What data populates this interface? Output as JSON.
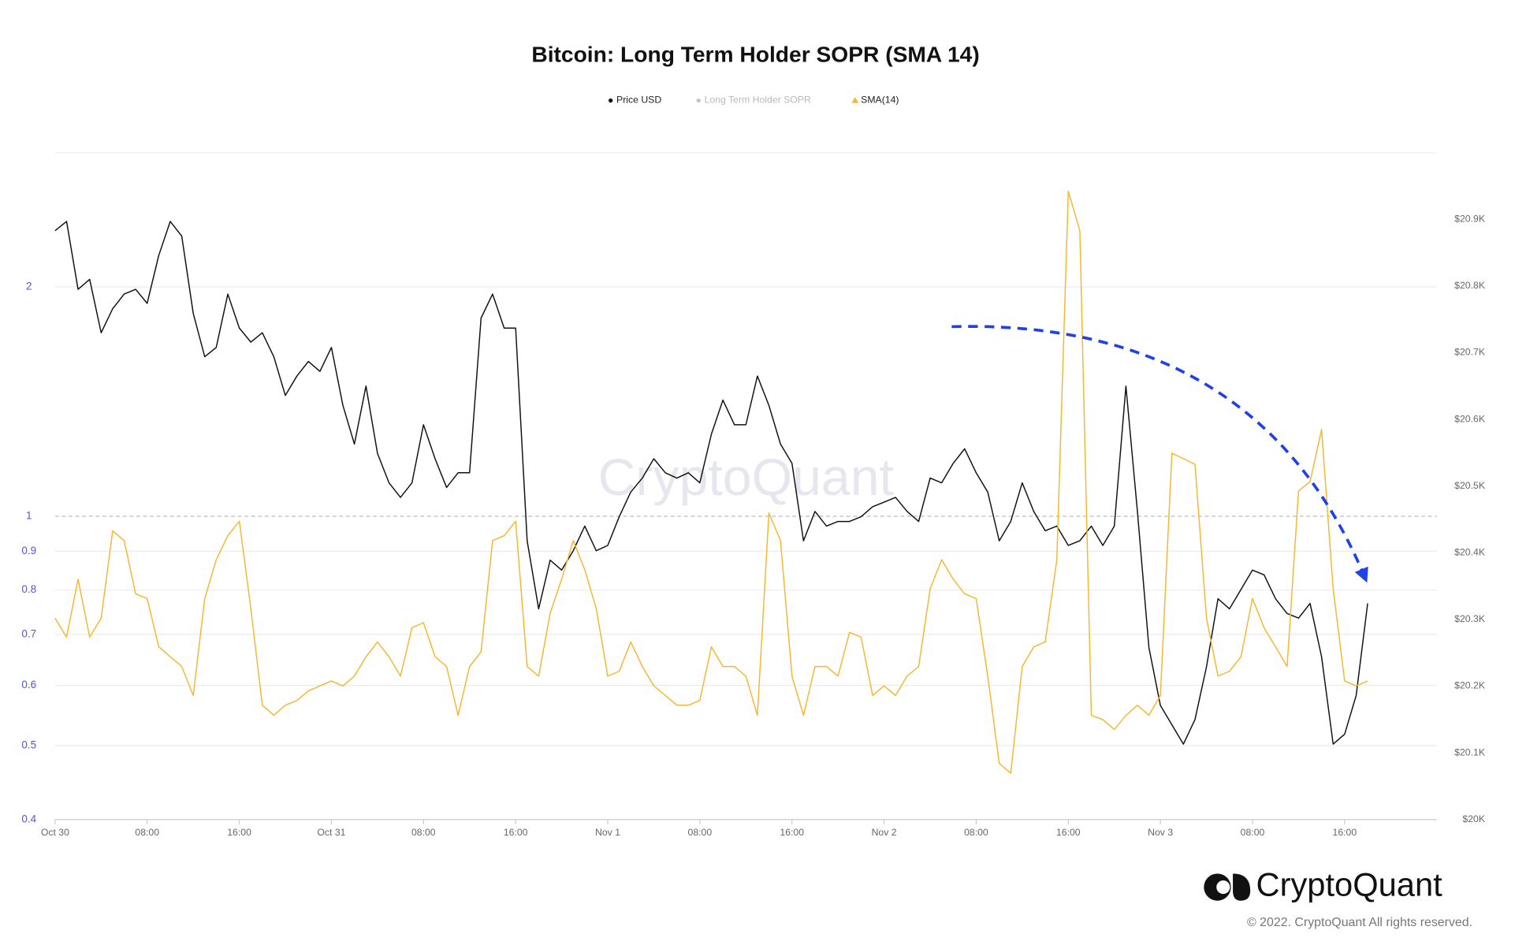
{
  "chart_data": {
    "type": "line",
    "title": "Bitcoin: Long Term Holder SOPR (SMA 14)",
    "watermark": "CryptoQuant",
    "brand": "CryptoQuant",
    "copyright": "© 2022. CryptoQuant All rights reserved.",
    "x": [
      0,
      1,
      2,
      3,
      4,
      5,
      6,
      7,
      8,
      9,
      10,
      11,
      12,
      13,
      14,
      15,
      16,
      17,
      18,
      19,
      20,
      21,
      22,
      23,
      24,
      25,
      26,
      27,
      28,
      29,
      30,
      31,
      32,
      33,
      34,
      35,
      36,
      37,
      38,
      39,
      40,
      41,
      42,
      43,
      44,
      45,
      46,
      47,
      48,
      49,
      50,
      51,
      52,
      53,
      54,
      55,
      56,
      57,
      58,
      59,
      60,
      61,
      62,
      63,
      64,
      65,
      66,
      67,
      68,
      69,
      70,
      71,
      72,
      73,
      74,
      75,
      76,
      77,
      78,
      79,
      80,
      81,
      82,
      83,
      84,
      85,
      86,
      87,
      88,
      89,
      90,
      91,
      92,
      93,
      94,
      95,
      96,
      97,
      98,
      99,
      100,
      101,
      102,
      103,
      104,
      105,
      106,
      107,
      108,
      109,
      110,
      111,
      112,
      113,
      114
    ],
    "xlim": [
      0,
      120
    ],
    "xticks": [
      {
        "value": 0,
        "label": "Oct 30"
      },
      {
        "value": 8,
        "label": "08:00"
      },
      {
        "value": 16,
        "label": "16:00"
      },
      {
        "value": 24,
        "label": "Oct 31"
      },
      {
        "value": 32,
        "label": "08:00"
      },
      {
        "value": 40,
        "label": "16:00"
      },
      {
        "value": 48,
        "label": "Nov 1"
      },
      {
        "value": 56,
        "label": "08:00"
      },
      {
        "value": 64,
        "label": "16:00"
      },
      {
        "value": 72,
        "label": "Nov 2"
      },
      {
        "value": 80,
        "label": "08:00"
      },
      {
        "value": 88,
        "label": "16:00"
      },
      {
        "value": 96,
        "label": "Nov 3"
      },
      {
        "value": 104,
        "label": "08:00"
      },
      {
        "value": 112,
        "label": "16:00"
      }
    ],
    "ylim": [
      0.4,
      3
    ],
    "yscale": "log",
    "yticks": [
      0.4,
      0.5,
      0.6,
      0.7,
      0.8,
      0.9,
      1,
      2
    ],
    "reference_line": 1,
    "y2lim": [
      20000,
      21000
    ],
    "y2ticks": [
      {
        "value": 20000,
        "label": "$20K"
      },
      {
        "value": 20100,
        "label": "$20.1K"
      },
      {
        "value": 20200,
        "label": "$20.2K"
      },
      {
        "value": 20300,
        "label": "$20.3K"
      },
      {
        "value": 20400,
        "label": "$20.4K"
      },
      {
        "value": 20500,
        "label": "$20.5K"
      },
      {
        "value": 20600,
        "label": "$20.6K"
      },
      {
        "value": 20700,
        "label": "$20.7K"
      },
      {
        "value": 20800,
        "label": "$20.8K"
      },
      {
        "value": 20900,
        "label": "$20.9K"
      }
    ],
    "grid": true,
    "series": [
      {
        "name": "Price USD",
        "color": "#111111",
        "axis": "y2",
        "marker": "circle",
        "values": [
          20883,
          20897,
          20795,
          20810,
          20730,
          20766,
          20788,
          20795,
          20774,
          20846,
          20897,
          20875,
          20759,
          20694,
          20708,
          20788,
          20737,
          20716,
          20730,
          20694,
          20636,
          20665,
          20687,
          20672,
          20708,
          20621,
          20563,
          20650,
          20549,
          20505,
          20483,
          20505,
          20592,
          20541,
          20498,
          20520,
          20520,
          20752,
          20788,
          20737,
          20737,
          20418,
          20316,
          20389,
          20374,
          20403,
          20440,
          20403,
          20411,
          20454,
          20491,
          20512,
          20541,
          20520,
          20512,
          20520,
          20505,
          20578,
          20629,
          20592,
          20592,
          20665,
          20621,
          20563,
          20534,
          20418,
          20462,
          20440,
          20447,
          20447,
          20454,
          20469,
          20476,
          20483,
          20462,
          20447,
          20512,
          20505,
          20534,
          20556,
          20520,
          20491,
          20418,
          20447,
          20505,
          20462,
          20433,
          20440,
          20411,
          20418,
          20440,
          20411,
          20440,
          20650,
          20462,
          20258,
          20171,
          20142,
          20113,
          20150,
          20229,
          20331,
          20316,
          20345,
          20374,
          20367,
          20331,
          20309,
          20302,
          20324,
          20244,
          20113,
          20128,
          20186,
          20324
        ]
      },
      {
        "name": "Long Term Holder SOPR",
        "color": "#c4c4cc",
        "visible": false,
        "marker": "circle"
      },
      {
        "name": "SMA(14)",
        "color": "#f5b731",
        "marker": "triangle",
        "values": [
          0.735,
          0.694,
          0.827,
          0.694,
          0.735,
          0.957,
          0.929,
          0.791,
          0.78,
          0.674,
          0.654,
          0.635,
          0.582,
          0.78,
          0.877,
          0.943,
          0.985,
          0.757,
          0.565,
          0.548,
          0.565,
          0.573,
          0.59,
          0.599,
          0.608,
          0.599,
          0.617,
          0.654,
          0.684,
          0.654,
          0.617,
          0.714,
          0.725,
          0.654,
          0.635,
          0.548,
          0.635,
          0.664,
          0.929,
          0.943,
          0.985,
          0.635,
          0.617,
          0.746,
          0.827,
          0.929,
          0.851,
          0.757,
          0.617,
          0.626,
          0.684,
          0.635,
          0.599,
          0.582,
          0.565,
          0.565,
          0.573,
          0.674,
          0.635,
          0.635,
          0.617,
          0.548,
          1.01,
          0.929,
          0.617,
          0.548,
          0.635,
          0.635,
          0.617,
          0.704,
          0.694,
          0.582,
          0.599,
          0.582,
          0.617,
          0.635,
          0.803,
          0.877,
          0.827,
          0.791,
          0.78,
          0.617,
          0.474,
          0.46,
          0.635,
          0.674,
          0.684,
          0.877,
          2.67,
          2.37,
          0.548,
          0.541,
          0.525,
          0.548,
          0.565,
          0.548,
          0.582,
          1.21,
          1.19,
          1.17,
          0.735,
          0.617,
          0.626,
          0.654,
          0.78,
          0.714,
          0.674,
          0.635,
          1.08,
          1.11,
          1.3,
          0.803,
          0.608,
          0.599,
          0.608
        ]
      }
    ]
  }
}
